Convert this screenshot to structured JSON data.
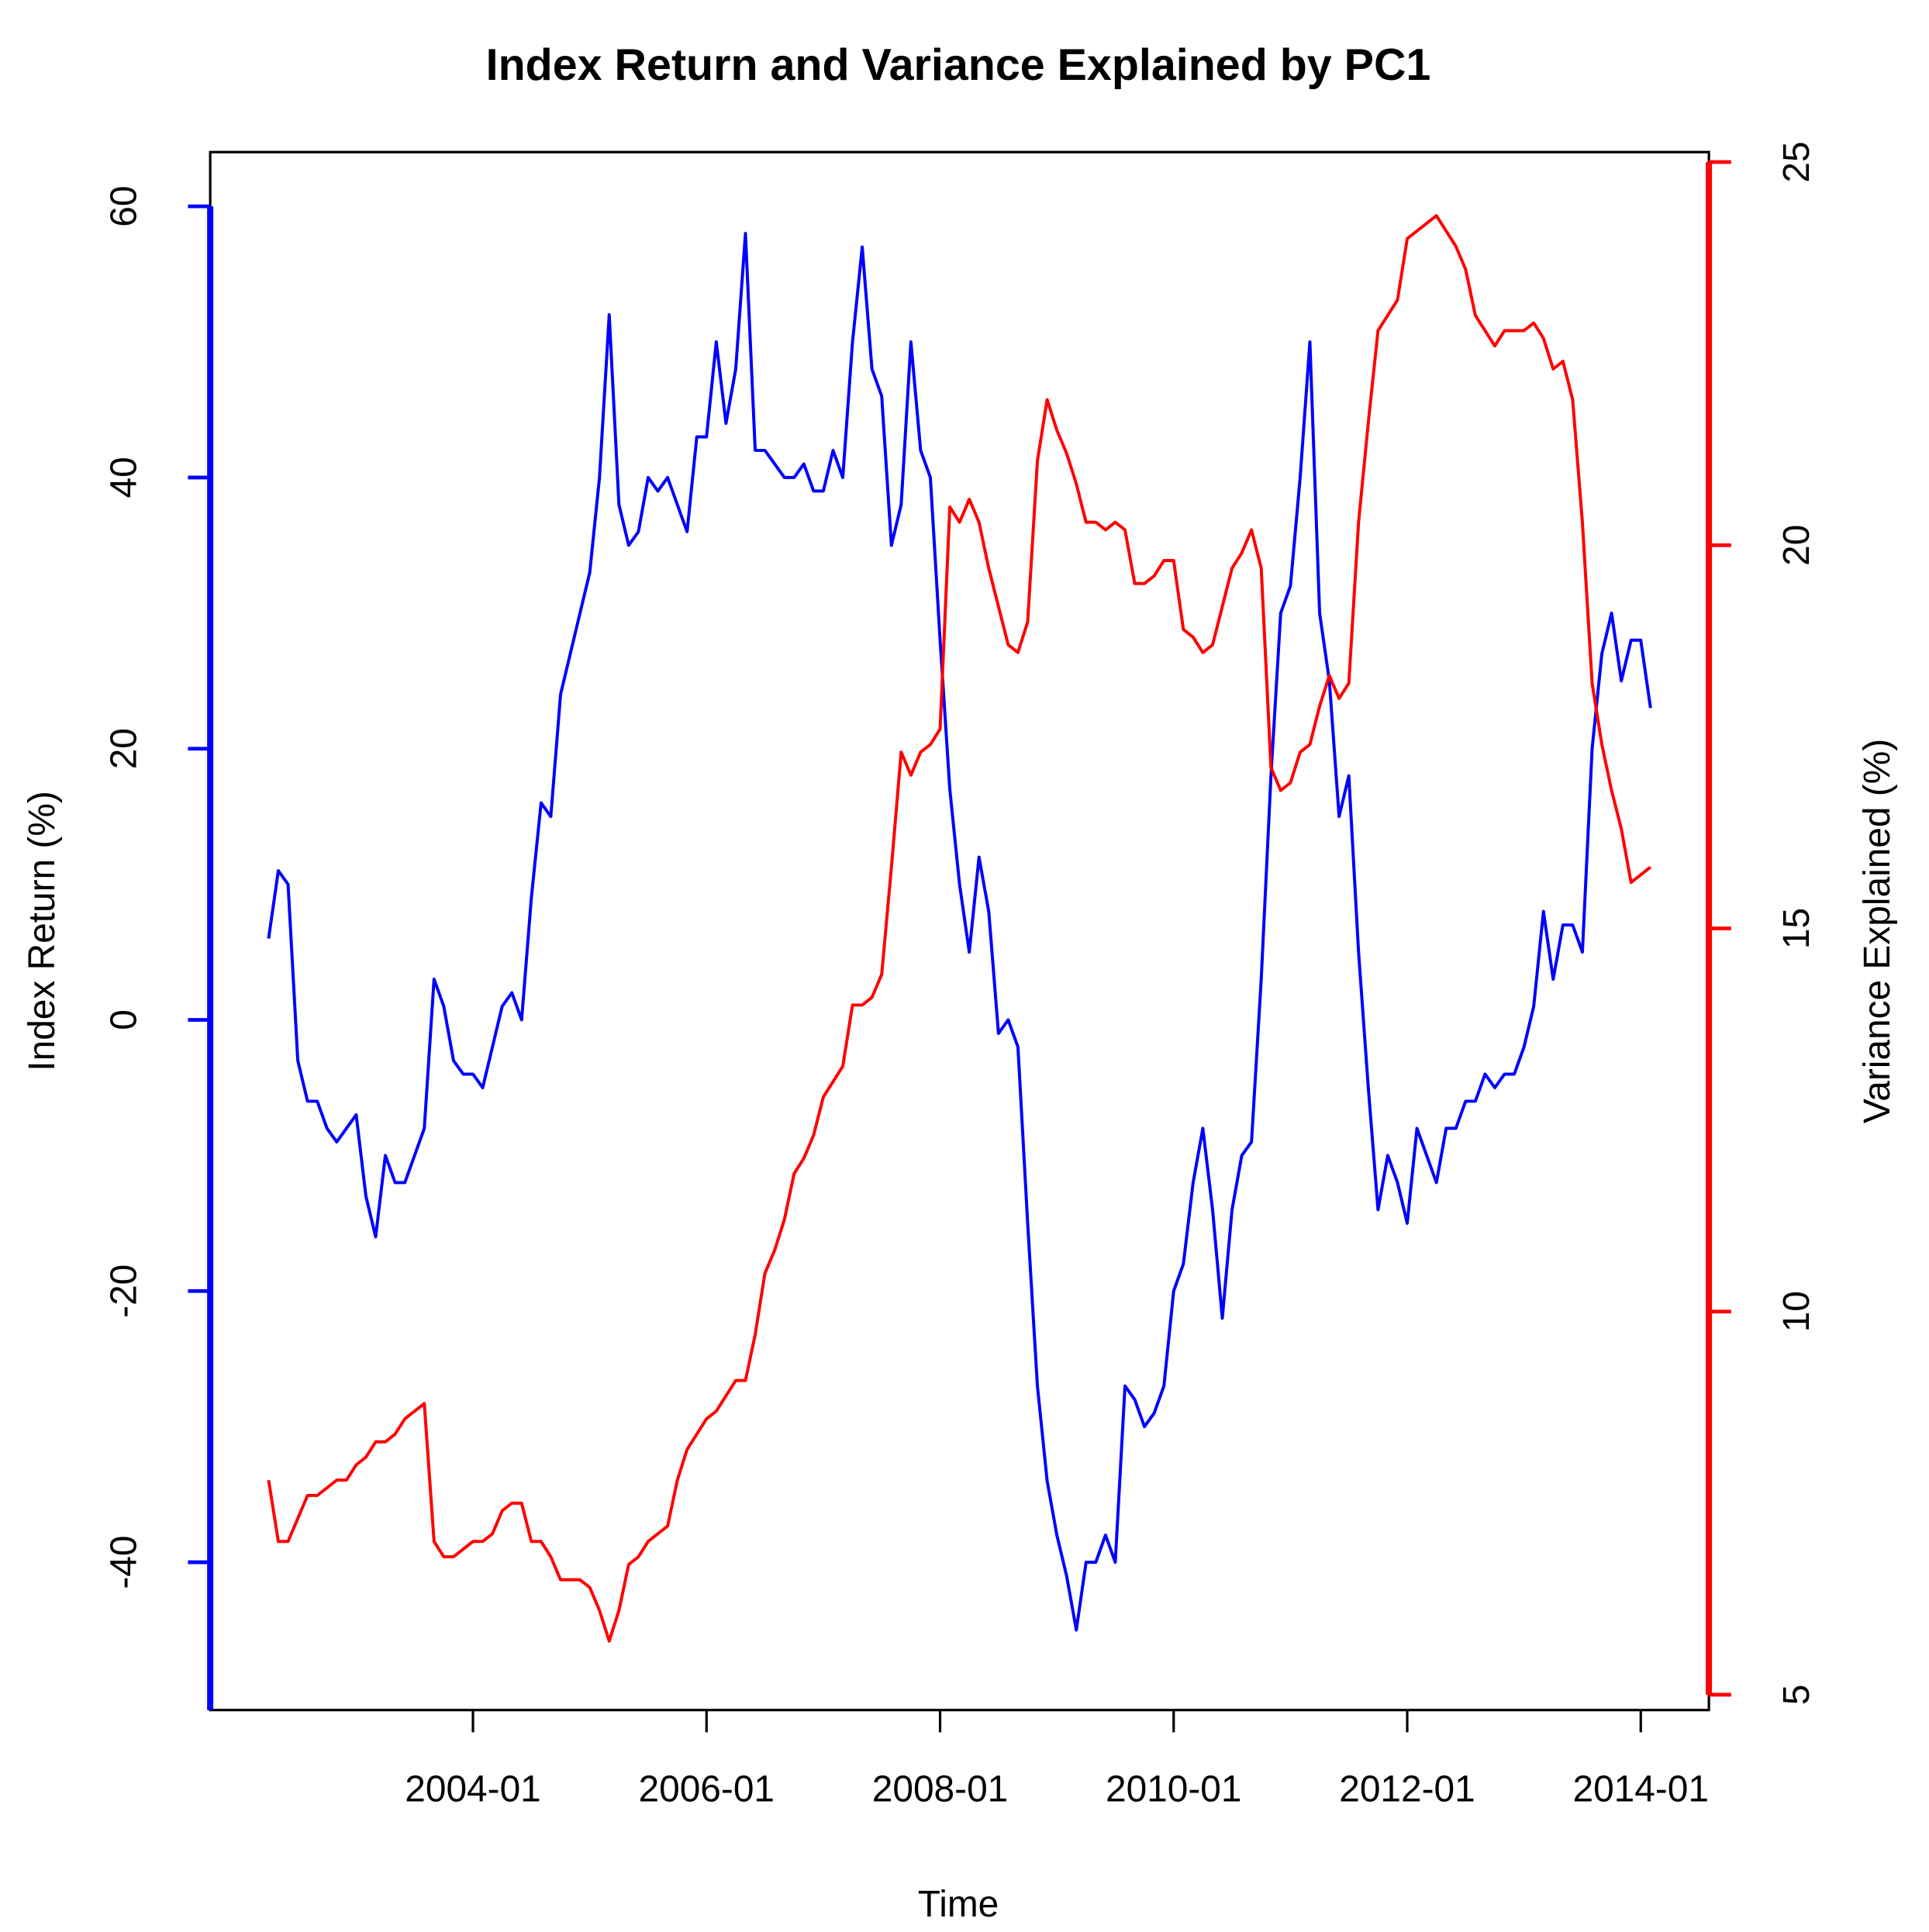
{
  "chart_data": {
    "type": "line",
    "title": "Index Return and Variance Explained by PC1",
    "x_label": "Time",
    "y_label": "Index Return (%)",
    "y2_label": "Variance Explained (%)",
    "x": [
      "2002-04",
      "2002-05",
      "2002-06",
      "2002-07",
      "2002-08",
      "2002-09",
      "2002-10",
      "2002-11",
      "2002-12",
      "2003-01",
      "2003-02",
      "2003-03",
      "2003-04",
      "2003-05",
      "2003-06",
      "2003-07",
      "2003-08",
      "2003-09",
      "2003-10",
      "2003-11",
      "2003-12",
      "2004-01",
      "2004-02",
      "2004-03",
      "2004-04",
      "2004-05",
      "2004-06",
      "2004-07",
      "2004-08",
      "2004-09",
      "2004-10",
      "2004-11",
      "2004-12",
      "2005-01",
      "2005-02",
      "2005-03",
      "2005-04",
      "2005-05",
      "2005-06",
      "2005-07",
      "2005-08",
      "2005-09",
      "2005-10",
      "2005-11",
      "2005-12",
      "2006-01",
      "2006-02",
      "2006-03",
      "2006-04",
      "2006-05",
      "2006-06",
      "2006-07",
      "2006-08",
      "2006-09",
      "2006-10",
      "2006-11",
      "2006-12",
      "2007-01",
      "2007-02",
      "2007-03",
      "2007-04",
      "2007-05",
      "2007-06",
      "2007-07",
      "2007-08",
      "2007-09",
      "2007-10",
      "2007-11",
      "2007-12",
      "2008-01",
      "2008-02",
      "2008-03",
      "2008-04",
      "2008-05",
      "2008-06",
      "2008-07",
      "2008-08",
      "2008-09",
      "2008-10",
      "2008-11",
      "2008-12",
      "2009-01",
      "2009-02",
      "2009-03",
      "2009-04",
      "2009-05",
      "2009-06",
      "2009-07",
      "2009-08",
      "2009-09",
      "2009-10",
      "2009-11",
      "2009-12",
      "2010-01",
      "2010-02",
      "2010-03",
      "2010-04",
      "2010-05",
      "2010-06",
      "2010-07",
      "2010-08",
      "2010-09",
      "2010-10",
      "2010-11",
      "2010-12",
      "2011-01",
      "2011-02",
      "2011-03",
      "2011-04",
      "2011-05",
      "2011-06",
      "2011-07",
      "2011-08",
      "2011-09",
      "2011-10",
      "2011-11",
      "2011-12",
      "2012-01",
      "2012-02",
      "2012-03",
      "2012-04",
      "2012-05",
      "2012-06",
      "2012-07",
      "2012-08",
      "2012-09",
      "2012-10",
      "2012-11",
      "2012-12",
      "2013-01",
      "2013-02",
      "2013-03",
      "2013-04",
      "2013-05",
      "2013-06",
      "2013-07",
      "2013-08",
      "2013-09",
      "2013-10",
      "2013-11",
      "2013-12",
      "2014-01",
      "2014-02"
    ],
    "series": [
      {
        "name": "Index Return (%)",
        "color": "#0000ff",
        "axis": "y",
        "values": [
          6,
          11,
          10,
          -3,
          -6,
          -6,
          -8,
          -9,
          -8,
          -7,
          -13,
          -16,
          -10,
          -12,
          -12,
          -10,
          -8,
          3,
          1,
          -3,
          -4,
          -4,
          -5,
          -2,
          1,
          2,
          0,
          9,
          16,
          15,
          24,
          27,
          30,
          33,
          40,
          52,
          38,
          35,
          36,
          40,
          39,
          40,
          38,
          36,
          43,
          43,
          50,
          44,
          48,
          58,
          42,
          42,
          41,
          40,
          40,
          41,
          39,
          39,
          42,
          40,
          50,
          57,
          48,
          46,
          35,
          38,
          50,
          42,
          40,
          28,
          17,
          10,
          5,
          12,
          8,
          -1,
          0,
          -2,
          -15,
          -27,
          -34,
          -38,
          -41,
          -45,
          -40,
          -40,
          -38,
          -40,
          -27,
          -28,
          -30,
          -29,
          -27,
          -20,
          -18,
          -12,
          -8,
          -14,
          -22,
          -14,
          -10,
          -9,
          3,
          18,
          30,
          32,
          40,
          50,
          30,
          25,
          15,
          18,
          5,
          -5,
          -14,
          -10,
          -12,
          -15,
          -8,
          -10,
          -12,
          -8,
          -8,
          -6,
          -6,
          -4,
          -5,
          -4,
          -4,
          -2,
          1,
          8,
          3,
          7,
          7,
          5,
          20,
          27,
          30,
          25,
          28,
          28,
          23
        ]
      },
      {
        "name": "Variance Explained (%)",
        "color": "#ff0000",
        "axis": "y2",
        "values": [
          7.8,
          7.0,
          7.0,
          7.3,
          7.6,
          7.6,
          7.7,
          7.8,
          7.8,
          8.0,
          8.1,
          8.3,
          8.3,
          8.4,
          8.6,
          8.7,
          8.8,
          7.0,
          6.8,
          6.8,
          6.9,
          7.0,
          7.0,
          7.1,
          7.4,
          7.5,
          7.5,
          7.0,
          7.0,
          6.8,
          6.5,
          6.5,
          6.5,
          6.4,
          6.1,
          5.7,
          6.1,
          6.7,
          6.8,
          7.0,
          7.1,
          7.2,
          7.8,
          8.2,
          8.4,
          8.6,
          8.7,
          8.9,
          9.1,
          9.1,
          9.7,
          10.5,
          10.8,
          11.2,
          11.8,
          12.0,
          12.3,
          12.8,
          13.0,
          13.2,
          14.0,
          14.0,
          14.1,
          14.4,
          15.8,
          17.3,
          17.0,
          17.3,
          17.4,
          17.6,
          20.5,
          20.3,
          20.6,
          20.3,
          19.7,
          19.2,
          18.7,
          18.6,
          19.0,
          21.1,
          21.9,
          21.5,
          21.2,
          20.8,
          20.3,
          20.3,
          20.2,
          20.3,
          20.2,
          19.5,
          19.5,
          19.6,
          19.8,
          19.8,
          18.9,
          18.8,
          18.6,
          18.7,
          19.2,
          19.7,
          19.9,
          20.2,
          19.7,
          17.1,
          16.8,
          16.9,
          17.3,
          17.4,
          17.9,
          18.3,
          18.0,
          18.2,
          20.3,
          21.6,
          22.8,
          23.0,
          23.2,
          24.0,
          24.1,
          24.2,
          24.3,
          24.1,
          23.9,
          23.6,
          23.0,
          22.8,
          22.6,
          22.8,
          22.8,
          22.8,
          22.9,
          22.7,
          22.3,
          22.4,
          21.9,
          20.3,
          18.2,
          17.4,
          16.8,
          16.3,
          15.6,
          15.7,
          15.8
        ]
      }
    ],
    "xlim": [
      "2001-10",
      "2014-08"
    ],
    "xticks": [
      "2004-01",
      "2006-01",
      "2008-01",
      "2010-01",
      "2012-01",
      "2014-01"
    ],
    "ylim": [
      -50.9,
      64
    ],
    "yticks": [
      -40,
      -20,
      0,
      20,
      40,
      60
    ],
    "y2lim": [
      4.8,
      25.13
    ],
    "y2ticks": [
      5,
      10,
      15,
      20,
      25
    ]
  }
}
